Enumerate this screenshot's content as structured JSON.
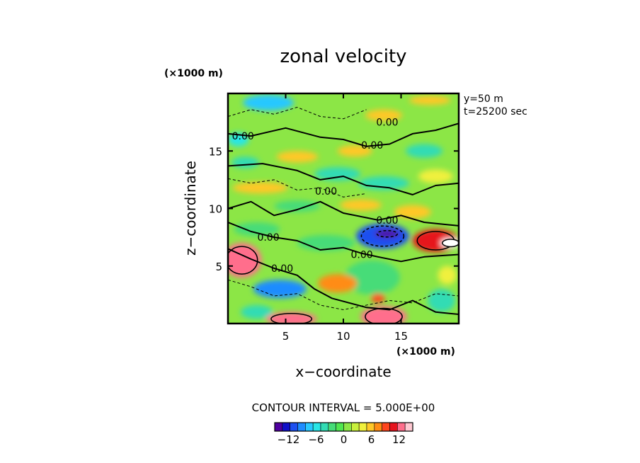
{
  "chart_data": {
    "type": "heatmap",
    "title": "zonal velocity",
    "xlabel": "x−coordinate",
    "ylabel": "z−coordinate",
    "x_unit": "(×1000 m)",
    "y_unit": "(×1000 m)",
    "xlim": [
      0,
      20
    ],
    "ylim": [
      0,
      20
    ],
    "x_ticks": [
      5,
      10,
      15
    ],
    "y_ticks": [
      5,
      10,
      15
    ],
    "x_tick_labels": [
      "5",
      "10",
      "15"
    ],
    "y_tick_labels": [
      "5",
      "10",
      "15"
    ],
    "info": [
      "y=50  m",
      "t=25200 sec"
    ],
    "contour_interval_text": "CONTOUR INTERVAL = 5.000E+00",
    "contour_labels": [
      {
        "text": "0.00",
        "x": 13.8,
        "z": 17.5
      },
      {
        "text": "0.00",
        "x": 1.3,
        "z": 16.3
      },
      {
        "text": "0.00",
        "x": 12.5,
        "z": 15.5
      },
      {
        "text": "0.00",
        "x": 8.5,
        "z": 11.5
      },
      {
        "text": "0.00",
        "x": 13.8,
        "z": 9.0
      },
      {
        "text": "0.00",
        "x": 3.5,
        "z": 7.5
      },
      {
        "text": "0.00",
        "x": 11.6,
        "z": 6.0
      },
      {
        "text": "0.00",
        "x": 4.7,
        "z": 4.8
      }
    ],
    "features": [
      {
        "kind": "background",
        "value": 1
      },
      {
        "kind": "blob",
        "x": 3.5,
        "z": 19.2,
        "rx": 2.2,
        "rz": 0.7,
        "value": -7
      },
      {
        "kind": "blob",
        "x": 0.9,
        "z": 16.0,
        "rx": 0.9,
        "rz": 0.6,
        "value": -6
      },
      {
        "kind": "blob",
        "x": 13.5,
        "z": 18.1,
        "rx": 1.6,
        "rz": 0.5,
        "value": 6
      },
      {
        "kind": "blob",
        "x": 17.5,
        "z": 19.4,
        "rx": 1.8,
        "rz": 0.4,
        "value": 5
      },
      {
        "kind": "blob",
        "x": 6.0,
        "z": 14.5,
        "rx": 1.8,
        "rz": 0.5,
        "value": 6
      },
      {
        "kind": "blob",
        "x": 11.0,
        "z": 15.0,
        "rx": 1.5,
        "rz": 0.5,
        "value": 5
      },
      {
        "kind": "blob",
        "x": 17.0,
        "z": 15.0,
        "rx": 1.6,
        "rz": 0.6,
        "value": -5
      },
      {
        "kind": "blob",
        "x": 1.5,
        "z": 14.0,
        "rx": 1.2,
        "rz": 0.5,
        "value": -4
      },
      {
        "kind": "blob",
        "x": 9.5,
        "z": 13.0,
        "rx": 2.0,
        "rz": 0.6,
        "value": -4
      },
      {
        "kind": "blob",
        "x": 2.8,
        "z": 11.8,
        "rx": 2.4,
        "rz": 0.5,
        "value": 6
      },
      {
        "kind": "blob",
        "x": 13.5,
        "z": 12.2,
        "rx": 2.2,
        "rz": 0.6,
        "value": -5
      },
      {
        "kind": "blob",
        "x": 18.0,
        "z": 12.8,
        "rx": 1.5,
        "rz": 0.6,
        "value": 4
      },
      {
        "kind": "blob",
        "x": 6.0,
        "z": 10.2,
        "rx": 2.0,
        "rz": 0.5,
        "value": -3
      },
      {
        "kind": "blob",
        "x": 11.5,
        "z": 10.3,
        "rx": 1.8,
        "rz": 0.5,
        "value": 5
      },
      {
        "kind": "blob",
        "x": 16.0,
        "z": 9.7,
        "rx": 1.6,
        "rz": 0.6,
        "value": 5
      },
      {
        "kind": "blob",
        "x": 2.5,
        "z": 8.2,
        "rx": 2.0,
        "rz": 0.6,
        "value": -3
      },
      {
        "kind": "blob",
        "x": 13.4,
        "z": 7.6,
        "rx": 2.3,
        "rz": 1.1,
        "value": -11
      },
      {
        "kind": "blob",
        "x": 13.8,
        "z": 7.8,
        "rx": 1.1,
        "rz": 0.35,
        "value": -15
      },
      {
        "kind": "blob",
        "x": 18.0,
        "z": 7.2,
        "rx": 2.0,
        "rz": 1.0,
        "value": 11
      },
      {
        "kind": "blob",
        "x": 19.3,
        "z": 7.0,
        "rx": 0.9,
        "rz": 0.4,
        "value": 15
      },
      {
        "kind": "blob",
        "x": 8.5,
        "z": 7.0,
        "rx": 2.5,
        "rz": 0.7,
        "value": -2
      },
      {
        "kind": "blob",
        "x": 1.2,
        "z": 5.5,
        "rx": 1.7,
        "rz": 1.5,
        "value": 12
      },
      {
        "kind": "blob",
        "x": 12.5,
        "z": 4.0,
        "rx": 2.4,
        "rz": 1.5,
        "value": -3
      },
      {
        "kind": "blob",
        "x": 9.5,
        "z": 3.5,
        "rx": 1.7,
        "rz": 0.8,
        "value": 8
      },
      {
        "kind": "blob",
        "x": 4.5,
        "z": 3.0,
        "rx": 2.3,
        "rz": 0.8,
        "value": -9
      },
      {
        "kind": "blob",
        "x": 2.5,
        "z": 1.0,
        "rx": 1.4,
        "rz": 0.6,
        "value": -5
      },
      {
        "kind": "blob",
        "x": 5.5,
        "z": 0.4,
        "rx": 2.2,
        "rz": 0.6,
        "value": 12
      },
      {
        "kind": "blob",
        "x": 13.5,
        "z": 0.6,
        "rx": 2.0,
        "rz": 0.9,
        "value": 12
      },
      {
        "kind": "blob",
        "x": 13.0,
        "z": 2.2,
        "rx": 0.6,
        "rz": 0.4,
        "value": 9
      },
      {
        "kind": "blob",
        "x": 18.5,
        "z": 2.0,
        "rx": 1.2,
        "rz": 1.0,
        "value": -4
      },
      {
        "kind": "blob",
        "x": 19.0,
        "z": 4.2,
        "rx": 0.8,
        "rz": 0.8,
        "value": 4
      }
    ],
    "contour_paths": [
      {
        "style": "solid",
        "points": [
          [
            0,
            13.7
          ],
          [
            3,
            13.9
          ],
          [
            6,
            13.3
          ],
          [
            8,
            12.5
          ],
          [
            10,
            12.8
          ],
          [
            12,
            12.0
          ],
          [
            14,
            11.8
          ],
          [
            16,
            11.2
          ],
          [
            18,
            12.0
          ],
          [
            20,
            12.2
          ]
        ]
      },
      {
        "style": "solid",
        "points": [
          [
            0,
            16.5
          ],
          [
            2,
            16.3
          ],
          [
            5,
            17.0
          ],
          [
            8,
            16.2
          ],
          [
            10,
            16.0
          ],
          [
            12,
            15.4
          ],
          [
            14,
            15.6
          ],
          [
            16,
            16.5
          ],
          [
            18,
            16.8
          ],
          [
            20,
            17.4
          ]
        ]
      },
      {
        "style": "solid",
        "points": [
          [
            0,
            10.0
          ],
          [
            2,
            10.6
          ],
          [
            4,
            9.4
          ],
          [
            6,
            9.9
          ],
          [
            8,
            10.6
          ],
          [
            10,
            9.6
          ],
          [
            12,
            9.2
          ],
          [
            13,
            9.0
          ],
          [
            15,
            9.4
          ],
          [
            17,
            8.8
          ],
          [
            20,
            8.5
          ]
        ]
      },
      {
        "style": "solid",
        "points": [
          [
            0,
            8.8
          ],
          [
            2,
            8.0
          ],
          [
            4,
            7.5
          ],
          [
            6,
            7.2
          ],
          [
            8,
            6.4
          ],
          [
            10,
            6.6
          ],
          [
            11.6,
            6.1
          ],
          [
            13,
            5.8
          ],
          [
            15,
            5.4
          ],
          [
            17,
            5.8
          ],
          [
            20,
            6.0
          ]
        ]
      },
      {
        "style": "solid",
        "points": [
          [
            0,
            6.5
          ],
          [
            2,
            5.6
          ],
          [
            4,
            4.8
          ],
          [
            6,
            4.2
          ],
          [
            7.5,
            3.0
          ],
          [
            9,
            2.2
          ],
          [
            10.5,
            1.8
          ],
          [
            12,
            1.4
          ],
          [
            14,
            1.2
          ],
          [
            16,
            2.0
          ],
          [
            18,
            1.0
          ],
          [
            20,
            0.8
          ]
        ]
      },
      {
        "style": "dashed",
        "points": [
          [
            0,
            18.0
          ],
          [
            2,
            18.6
          ],
          [
            4,
            18.2
          ],
          [
            6,
            18.8
          ],
          [
            8,
            18.0
          ],
          [
            10,
            17.8
          ],
          [
            12,
            18.6
          ]
        ]
      },
      {
        "style": "dashed",
        "points": [
          [
            0,
            12.6
          ],
          [
            2,
            12.2
          ],
          [
            4,
            12.5
          ],
          [
            6,
            11.6
          ],
          [
            8,
            11.8
          ],
          [
            10,
            11.0
          ],
          [
            12,
            11.3
          ]
        ]
      },
      {
        "style": "dashed",
        "points": [
          [
            0,
            3.8
          ],
          [
            2,
            3.2
          ],
          [
            4,
            2.4
          ],
          [
            6,
            2.6
          ],
          [
            8,
            1.6
          ],
          [
            10,
            1.2
          ],
          [
            12,
            1.6
          ],
          [
            14,
            2.0
          ],
          [
            16,
            1.8
          ],
          [
            18,
            2.6
          ],
          [
            20,
            2.4
          ]
        ]
      }
    ],
    "colorbar": {
      "vmin": -15,
      "vmax": 15,
      "tick_values": [
        -12,
        -6,
        0,
        6,
        12
      ],
      "tick_labels": [
        "−12",
        "−6",
        "0",
        "6",
        "12"
      ],
      "colors": [
        "#5000a0",
        "#1010c8",
        "#1e50f0",
        "#1e8cff",
        "#28c8ff",
        "#28e6e6",
        "#32dcb4",
        "#46dc78",
        "#50e650",
        "#8ce646",
        "#c8f03c",
        "#f0f03c",
        "#ffc828",
        "#ff8c14",
        "#ff461e",
        "#e6141e",
        "#ff6e8c",
        "#ffc8d2"
      ]
    }
  }
}
